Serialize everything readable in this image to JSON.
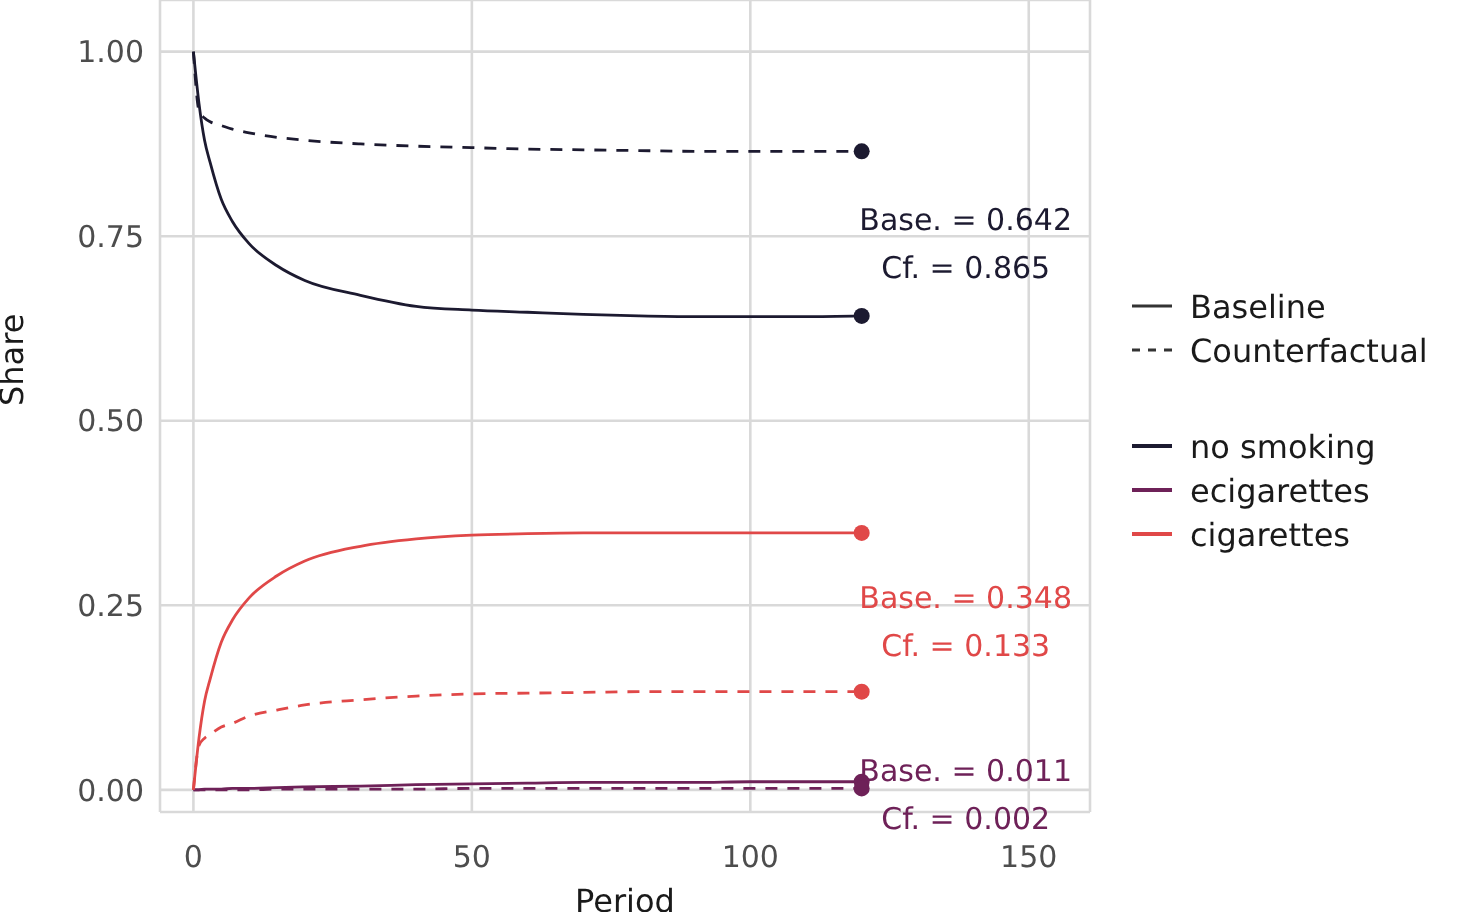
{
  "chart_data": {
    "type": "line",
    "xlabel": "Period",
    "ylabel": "Share",
    "x": [
      0,
      1,
      2,
      3,
      5,
      7,
      10,
      15,
      20,
      30,
      40,
      50,
      60,
      70,
      80,
      90,
      100,
      110,
      120
    ],
    "xlim": [
      -6,
      161
    ],
    "xticks": [
      0,
      50,
      100,
      150
    ],
    "ylim": [
      -0.03,
      1.07
    ],
    "yticks": [
      {
        "value": 0,
        "label": "0.00"
      },
      {
        "value": 0.25,
        "label": "0.25"
      },
      {
        "value": 0.5,
        "label": "0.50"
      },
      {
        "value": 0.75,
        "label": "0.75"
      },
      {
        "value": 1,
        "label": "1.00"
      }
    ],
    "grid": true,
    "legend": "right",
    "series": [
      {
        "name": "no smoking",
        "color": "#1c1a30",
        "line_style": "solid",
        "values": [
          1,
          0.93,
          0.88,
          0.85,
          0.8,
          0.77,
          0.74,
          0.71,
          0.69,
          0.67,
          0.655,
          0.65,
          0.647,
          0.644,
          0.642,
          0.641,
          0.641,
          0.641,
          0.642
        ]
      },
      {
        "name": "ecigarettes",
        "color": "#6e2158",
        "line_style": "solid",
        "values": [
          0,
          0,
          0.001,
          0.001,
          0.001,
          0.002,
          0.002,
          0.003,
          0.004,
          0.005,
          0.007,
          0.008,
          0.009,
          0.01,
          0.01,
          0.01,
          0.011,
          0.011,
          0.011
        ]
      },
      {
        "name": "cigarettes",
        "color": "#e04848",
        "line_style": "solid",
        "values": [
          0,
          0.07,
          0.12,
          0.15,
          0.2,
          0.23,
          0.26,
          0.29,
          0.31,
          0.33,
          0.34,
          0.345,
          0.347,
          0.348,
          0.348,
          0.348,
          0.348,
          0.348,
          0.348
        ]
      },
      {
        "color": "#1c1a30",
        "line_style": "dashed",
        "values": [
          1,
          0.92,
          0.91,
          0.905,
          0.9,
          0.895,
          0.89,
          0.884,
          0.88,
          0.875,
          0.872,
          0.87,
          0.868,
          0.867,
          0.866,
          0.865,
          0.865,
          0.865,
          0.865
        ]
      },
      {
        "color": "#6e2158",
        "line_style": "dashed",
        "values": [
          0,
          0,
          0,
          0,
          0,
          0,
          0,
          0.001,
          0.001,
          0.001,
          0.001,
          0.002,
          0.002,
          0.002,
          0.002,
          0.002,
          0.002,
          0.002,
          0.002
        ]
      },
      {
        "color": "#e04848",
        "line_style": "dashed",
        "values": [
          0,
          0.06,
          0.07,
          0.075,
          0.085,
          0.09,
          0.1,
          0.108,
          0.115,
          0.122,
          0.127,
          0.13,
          0.131,
          0.132,
          0.133,
          0.133,
          0.133,
          0.133,
          0.133
        ]
      }
    ],
    "annotations": [
      "Baseline",
      "Counterfactual",
      "Base. = 0.642",
      "Cf. = 0.865",
      "Base. = 0.011",
      "Cf. = 0.002",
      "Base. = 0.348",
      "Cf. = 0.133"
    ]
  }
}
